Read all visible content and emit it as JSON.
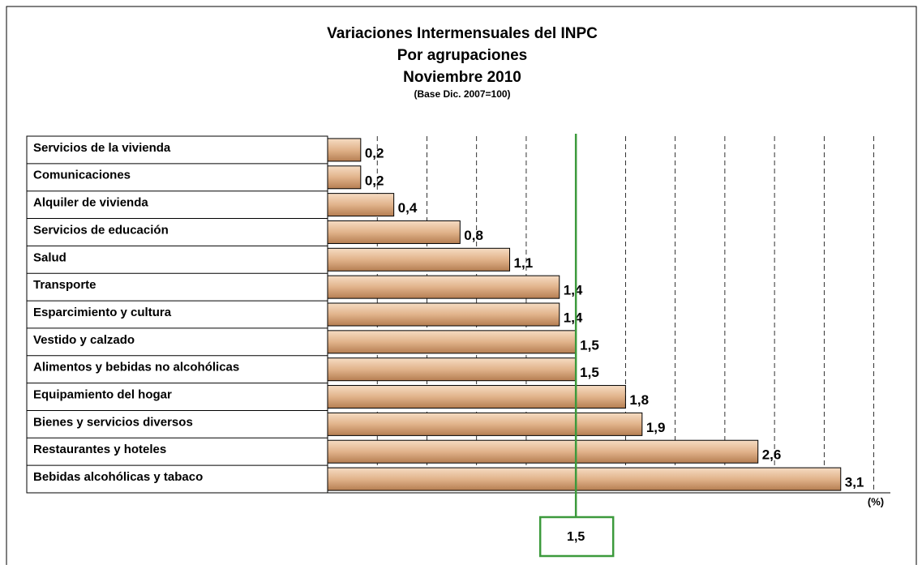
{
  "chart_data": {
    "type": "hbar",
    "title": "Variaciones Intermensuales del INPC",
    "subtitle": [
      "Por agrupaciones",
      "Noviembre 2010"
    ],
    "note": "(Base Dic. 2007=100)",
    "categories": [
      "Servicios de la vivienda",
      "Comunicaciones",
      "Alquiler de vivienda",
      "Servicios de educación",
      "Salud",
      "Transporte",
      "Esparcimiento y cultura",
      "Vestido y calzado",
      "Alimentos y bebidas no alcohólicas",
      "Equipamiento del hogar",
      "Bienes y servicios diversos",
      "Restaurantes y hoteles",
      "Bebidas alcohólicas y tabaco"
    ],
    "values": [
      0.2,
      0.2,
      0.4,
      0.8,
      1.1,
      1.4,
      1.4,
      1.5,
      1.5,
      1.8,
      1.9,
      2.6,
      3.1
    ],
    "value_labels": [
      "0,2",
      "0,2",
      "0,4",
      "0,8",
      "1,1",
      "1,4",
      "1,4",
      "1,5",
      "1,5",
      "1,8",
      "1,9",
      "2,6",
      "3,1"
    ],
    "color": "#d9a070",
    "xlim": [
      0,
      3.4
    ],
    "xticks": [
      0.3,
      0.6,
      0.9,
      1.2,
      1.5,
      1.8,
      2.1,
      2.4,
      2.7,
      3.0,
      3.3
    ],
    "grid": true,
    "x_label": "(%)",
    "reference": {
      "value": 1.5,
      "label": "1,5",
      "color": "#3c9a3c"
    }
  }
}
